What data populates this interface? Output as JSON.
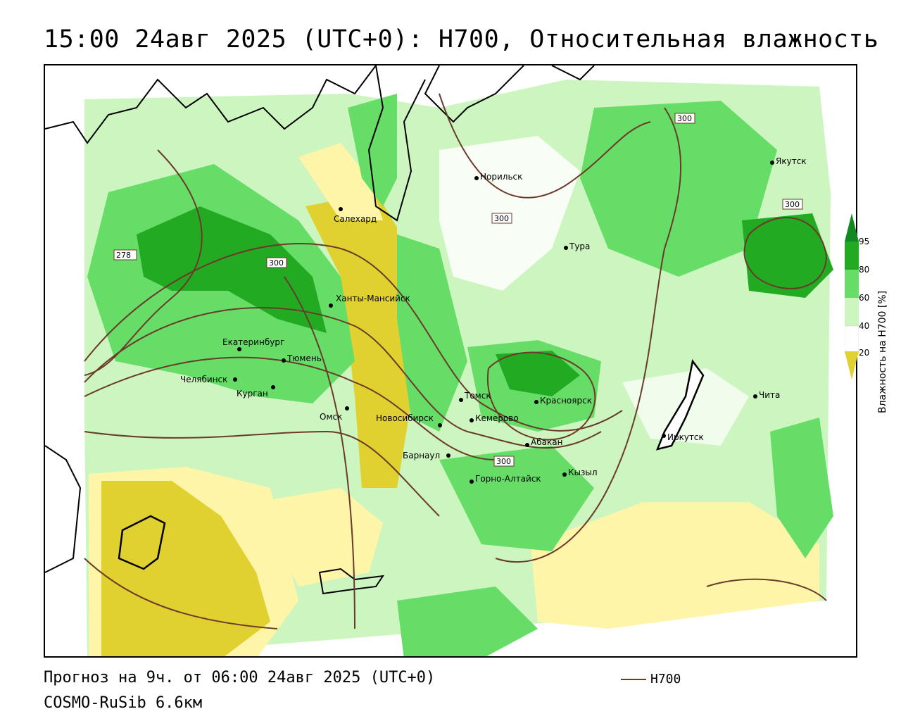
{
  "header": {
    "title": "15:00 24авг 2025 (UTC+0): H700, Относительная влажность"
  },
  "colors": {
    "dry_dark": "#e0d030",
    "dry_light": "#fff5a8",
    "neutral": "#ffffff",
    "moist_light": "#ccf5c0",
    "moist_mid": "#66dd66",
    "moist_dark": "#22aa22",
    "moist_max": "#118822",
    "contour": "#6b3a2a",
    "coast": "#000000"
  },
  "colorbar": {
    "ticks": [
      "95",
      "80",
      "60",
      "40",
      "20"
    ],
    "title": "Влажность на H700 [%]"
  },
  "contour_labels": [
    "278",
    "300",
    "300",
    "300",
    "300",
    "300"
  ],
  "cities": [
    {
      "name": "Норильск"
    },
    {
      "name": "Якутск"
    },
    {
      "name": "Салехард"
    },
    {
      "name": "Тура"
    },
    {
      "name": "Ханты-Мансийск"
    },
    {
      "name": "Екатеринбург"
    },
    {
      "name": "Тюмень"
    },
    {
      "name": "Челябинск"
    },
    {
      "name": "Курган"
    },
    {
      "name": "Омск"
    },
    {
      "name": "Новосибирск"
    },
    {
      "name": "Томск"
    },
    {
      "name": "Кемерово"
    },
    {
      "name": "Красноярск"
    },
    {
      "name": "Абакан"
    },
    {
      "name": "Барнаул"
    },
    {
      "name": "Горно-Алтайск"
    },
    {
      "name": "Кызыл"
    },
    {
      "name": "Иркутск"
    },
    {
      "name": "Чита"
    }
  ],
  "footer": {
    "forecast": "Прогноз на 9ч. от 06:00 24авг 2025 (UTC+0)",
    "model": "COSMO-RuSib 6.6км",
    "legend_label": "H700"
  }
}
